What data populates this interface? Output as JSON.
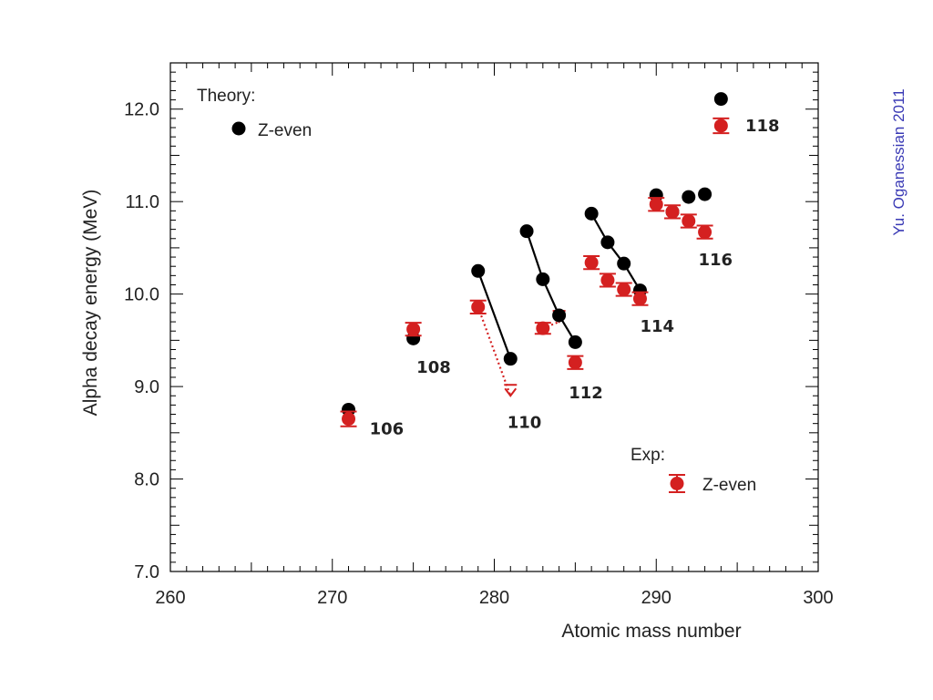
{
  "chart_data": {
    "type": "scatter",
    "xlabel": "Atomic mass number",
    "ylabel": "Alpha decay energy (MeV)",
    "xlim": [
      260,
      300
    ],
    "ylim": [
      7.0,
      12.5
    ],
    "x_ticks": [
      260,
      270,
      280,
      290,
      300
    ],
    "x_tick_labels": [
      "260",
      "270",
      "280",
      "290",
      "300"
    ],
    "y_ticks": [
      7.0,
      8.0,
      9.0,
      10.0,
      11.0,
      12.0
    ],
    "y_tick_labels": [
      "7.0",
      "8.0",
      "9.0",
      "10.0",
      "11.0",
      "12.0"
    ],
    "grid": false,
    "credit": "Yu. Oganessian 2011",
    "legends": [
      {
        "heading": "Theory:",
        "entry": "Z-even",
        "placement": "top-left"
      },
      {
        "heading": "Exp:",
        "entry": "Z-even",
        "placement": "bottom-right"
      }
    ],
    "series": [
      {
        "name": "Theory: Z-even",
        "color": "#000000",
        "marker": "circle",
        "points": [
          {
            "x": 271,
            "y": 8.75
          },
          {
            "x": 275,
            "y": 9.52
          },
          {
            "x": 279,
            "y": 10.25
          },
          {
            "x": 281,
            "y": 9.3
          },
          {
            "x": 282,
            "y": 10.68
          },
          {
            "x": 283,
            "y": 10.16
          },
          {
            "x": 284,
            "y": 9.77
          },
          {
            "x": 285,
            "y": 9.48
          },
          {
            "x": 286,
            "y": 10.87
          },
          {
            "x": 287,
            "y": 10.56
          },
          {
            "x": 288,
            "y": 10.33
          },
          {
            "x": 289,
            "y": 10.04
          },
          {
            "x": 290,
            "y": 11.07
          },
          {
            "x": 291,
            "y": 10.89
          },
          {
            "x": 292,
            "y": 11.05
          },
          {
            "x": 293,
            "y": 11.08
          },
          {
            "x": 294,
            "y": 12.11
          }
        ],
        "lines": [
          [
            [
              279,
              10.25
            ],
            [
              281,
              9.3
            ]
          ],
          [
            [
              282,
              10.68
            ],
            [
              283,
              10.16
            ],
            [
              284,
              9.77
            ],
            [
              285,
              9.48
            ]
          ],
          [
            [
              286,
              10.87
            ],
            [
              287,
              10.56
            ],
            [
              288,
              10.33
            ],
            [
              289,
              10.04
            ]
          ]
        ]
      },
      {
        "name": "Exp: Z-even",
        "color": "#d42020",
        "marker": "circle-errorbar",
        "points": [
          {
            "x": 271,
            "y": 8.65,
            "err": 0.08
          },
          {
            "x": 275,
            "y": 9.62,
            "err": 0.07
          },
          {
            "x": 279,
            "y": 9.86,
            "err": 0.07
          },
          {
            "x": 283,
            "y": 9.63,
            "err": 0.06
          },
          {
            "x": 285,
            "y": 9.26,
            "err": 0.07
          },
          {
            "x": 286,
            "y": 10.34,
            "err": 0.07
          },
          {
            "x": 287,
            "y": 10.15,
            "err": 0.07
          },
          {
            "x": 288,
            "y": 10.05,
            "err": 0.07
          },
          {
            "x": 289,
            "y": 9.95,
            "err": 0.07
          },
          {
            "x": 290,
            "y": 10.97,
            "err": 0.07
          },
          {
            "x": 291,
            "y": 10.89,
            "err": 0.07
          },
          {
            "x": 292,
            "y": 10.79,
            "err": 0.07
          },
          {
            "x": 293,
            "y": 10.67,
            "err": 0.07
          },
          {
            "x": 294,
            "y": 11.82,
            "err": 0.08
          }
        ],
        "upper_limits": [
          {
            "x": 281,
            "y": 8.9
          },
          {
            "x": 284,
            "y": 9.7
          }
        ],
        "dotted_links": [
          [
            [
              279,
              9.86
            ],
            [
              281,
              8.9
            ]
          ],
          [
            [
              283,
              9.63
            ],
            [
              284,
              9.7
            ]
          ]
        ]
      }
    ],
    "annotations": [
      {
        "text": "106",
        "x": 272.3,
        "y": 8.55
      },
      {
        "text": "108",
        "x": 275.2,
        "y": 9.22
      },
      {
        "text": "110",
        "x": 280.8,
        "y": 8.62
      },
      {
        "text": "112",
        "x": 284.6,
        "y": 8.94
      },
      {
        "text": "114",
        "x": 289.0,
        "y": 9.66
      },
      {
        "text": "116",
        "x": 292.6,
        "y": 10.38
      },
      {
        "text": "118",
        "x": 295.5,
        "y": 11.83
      }
    ]
  }
}
